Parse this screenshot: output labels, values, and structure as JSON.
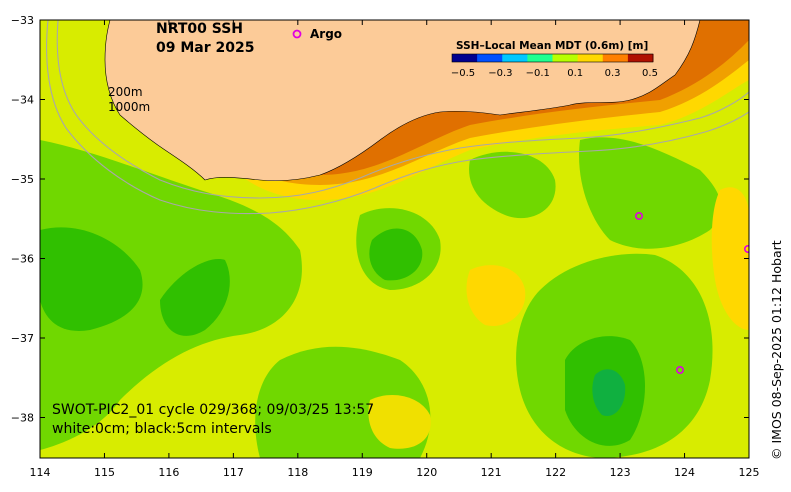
{
  "title": {
    "line1": "NRT00 SSH",
    "line2": "09 Mar 2025"
  },
  "legend": {
    "argo_label": "Argo",
    "argo_color": "#e000e0"
  },
  "colorbar": {
    "title": "SSH–Local Mean MDT (0.6m) [m]",
    "ticks": [
      "−0.5",
      "−0.3",
      "−0.1",
      "0.1",
      "0.3",
      "0.5"
    ],
    "colors": [
      "#00008f",
      "#0050ff",
      "#00c8ff",
      "#20ff90",
      "#b8ff00",
      "#ffd800",
      "#ff8000",
      "#b01000"
    ]
  },
  "contours": {
    "label_200": "200m",
    "label_1000": "1000m"
  },
  "axes": {
    "x_ticks": [
      "114",
      "115",
      "116",
      "117",
      "118",
      "119",
      "120",
      "121",
      "122",
      "123",
      "124",
      "125"
    ],
    "y_ticks": [
      "−33",
      "−34",
      "−35",
      "−36",
      "−37",
      "−38"
    ]
  },
  "footer": {
    "line1": "SWOT-PIC2_01 cycle 029/368; 09/03/25 13:57",
    "line2": "white:0cm; black:5cm intervals"
  },
  "credit": "© IMOS 08-Sep-2025 01:12 Hobart",
  "colors": {
    "land": "#fccb98",
    "ssh_high": "#e07000",
    "ssh_mid_high": "#f0a000",
    "ssh_mid": "#ffd800",
    "ssh_low_mid": "#e8f000",
    "ssh_zero": "#b8ea00",
    "ssh_low": "#70d800",
    "ssh_lower": "#30c000"
  }
}
